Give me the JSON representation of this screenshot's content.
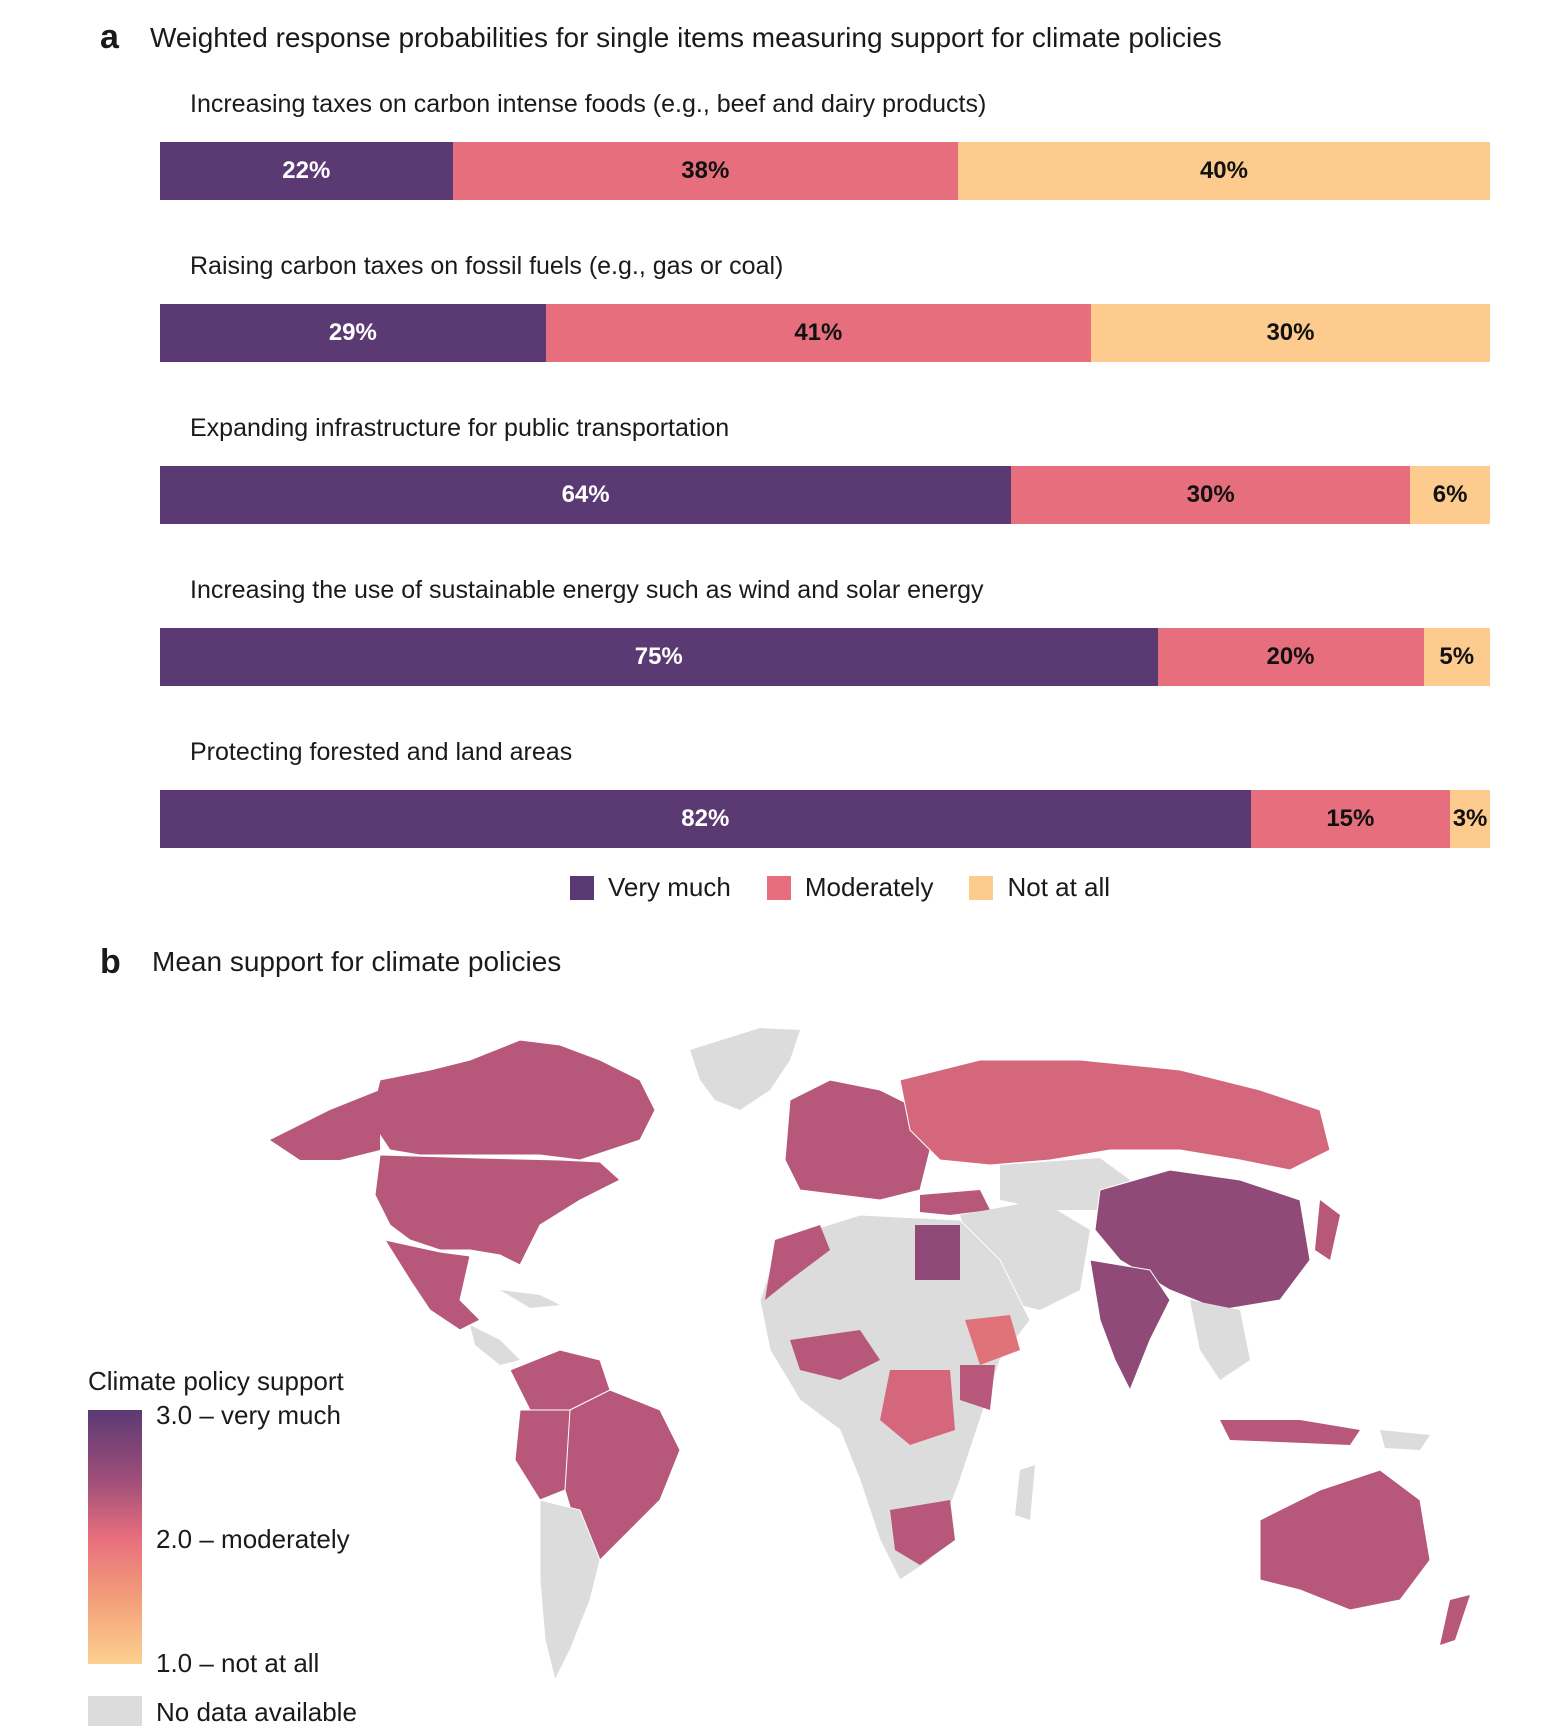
{
  "panel_a": {
    "letter": "a",
    "title": "Weighted response probabilities for single items measuring support for climate policies"
  },
  "panel_b": {
    "letter": "b",
    "title": "Mean support for climate policies"
  },
  "colors": {
    "very_much": "#5b3a73",
    "moderately": "#e76e7d",
    "not_at_all": "#fdcb8e",
    "no_data": "#dcdcdc",
    "map_high": "#8f4a78",
    "map_mid": "#b7587a",
    "map_low": "#d5677c"
  },
  "chart_data": {
    "type": "bar",
    "orientation": "horizontal-stacked-100",
    "title": "Weighted response probabilities for single items measuring support for climate policies",
    "categories": [
      "Increasing taxes on carbon intense foods (e.g., beef and dairy products)",
      "Raising carbon taxes on fossil fuels (e.g., gas or coal)",
      "Expanding infrastructure for public transportation",
      "Increasing the use of sustainable energy such as wind and solar energy",
      "Protecting forested and land areas"
    ],
    "series": [
      {
        "name": "Very much",
        "values": [
          22,
          29,
          64,
          75,
          82
        ],
        "labels": [
          "22%",
          "29%",
          "64%",
          "75%",
          "82%"
        ]
      },
      {
        "name": "Moderately",
        "values": [
          38,
          41,
          30,
          20,
          15
        ],
        "labels": [
          "38%",
          "41%",
          "30%",
          "20%",
          "15%"
        ]
      },
      {
        "name": "Not at all",
        "values": [
          40,
          30,
          6,
          5,
          3
        ],
        "labels": [
          "40%",
          "30%",
          "6%",
          "5%",
          "3%"
        ]
      }
    ],
    "xlim": [
      0,
      100
    ],
    "legend": "bottom-center"
  },
  "map": {
    "title": "Mean support for climate policies",
    "colorbar_title": "Climate policy support",
    "colorbar_labels": [
      "3.0 – very much",
      "2.0 – moderately",
      "1.0 – not at all"
    ],
    "colorbar_range": [
      1.0,
      3.0
    ],
    "no_data_label": "No data available"
  }
}
